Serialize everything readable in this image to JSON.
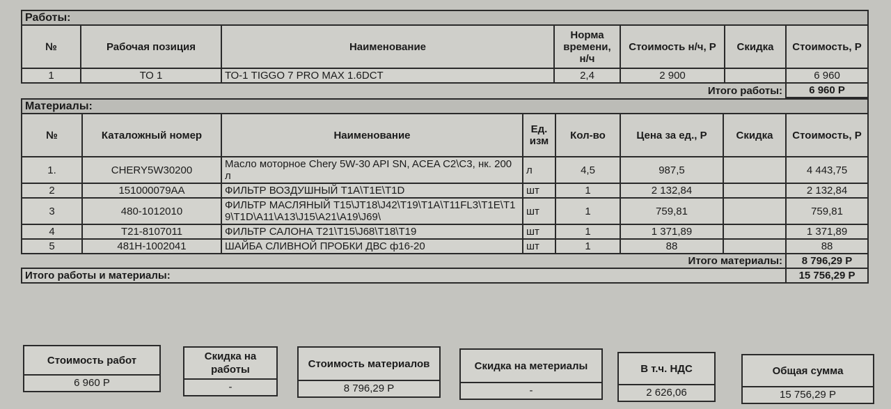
{
  "works": {
    "section_title": "Работы:",
    "headers": [
      "№",
      "Рабочая позиция",
      "Наименование",
      "Норма времени, н/ч",
      "Стоимость н/ч, Р",
      "Скидка",
      "Стоимость, Р"
    ],
    "rows": [
      {
        "num": "1",
        "position": "ТО 1",
        "name": "ТО-1 TIGGO 7 PRO MAX 1.6DCT",
        "norm": "2,4",
        "rate": "2 900",
        "discount": "",
        "cost": "6 960"
      }
    ],
    "total_label": "Итого работы:",
    "total_value": "6 960 Р"
  },
  "materials": {
    "section_title": "Материалы:",
    "headers": [
      "№",
      "Каталожный номер",
      "Наименование",
      "Ед. изм",
      "Кол-во",
      "Цена за ед., Р",
      "Скидка",
      "Стоимость, Р"
    ],
    "rows": [
      {
        "num": "1.",
        "catalog": "CHERY5W30200",
        "name": "Масло моторное Chery 5W-30 API SN, ACEA C2\\C3, нк. 200 л",
        "unit": "л",
        "qty": "4,5",
        "price": "987,5",
        "discount": "",
        "cost": "4 443,75"
      },
      {
        "num": "2",
        "catalog": "151000079AA",
        "name": "ФИЛЬТР ВОЗДУШНЫЙ T1A\\T1E\\T1D",
        "unit": "шт",
        "qty": "1",
        "price": "2 132,84",
        "discount": "",
        "cost": "2 132,84"
      },
      {
        "num": "3",
        "catalog": "480-1012010",
        "name": "ФИЛЬТР МАСЛЯНЫЙ T15\\JT18\\J42\\T19\\T1A\\T11FL3\\T1E\\T19\\T1D\\A11\\A13\\J15\\A21\\A19\\J69\\",
        "unit": "шт",
        "qty": "1",
        "price": "759,81",
        "discount": "",
        "cost": "759,81"
      },
      {
        "num": "4",
        "catalog": "T21-8107011",
        "name": "ФИЛЬТР САЛОНА T21\\T15\\J68\\T18\\T19",
        "unit": "шт",
        "qty": "1",
        "price": "1 371,89",
        "discount": "",
        "cost": "1 371,89"
      },
      {
        "num": "5",
        "catalog": "481H-1002041",
        "name": "ШАЙБА СЛИВНОЙ ПРОБКИ ДВС ф16-20",
        "unit": "шт",
        "qty": "1",
        "price": "88",
        "discount": "",
        "cost": "88"
      }
    ],
    "total_label": "Итого материалы:",
    "total_value": "8 796,29 Р"
  },
  "grand": {
    "label": "Итого работы и материалы:",
    "value": "15 756,29 Р"
  },
  "summary": [
    {
      "label": "Стоимость работ",
      "value": "6 960 Р"
    },
    {
      "label": "Скидка на работы",
      "value": "-"
    },
    {
      "label": "Стоимость материалов",
      "value": "8 796,29 Р"
    },
    {
      "label": "Скидка на метериалы",
      "value": "-"
    },
    {
      "label": "В т.ч. НДС",
      "value": "2 626,06"
    },
    {
      "label": "Общая сумма",
      "value": "15 756,29 Р"
    }
  ]
}
